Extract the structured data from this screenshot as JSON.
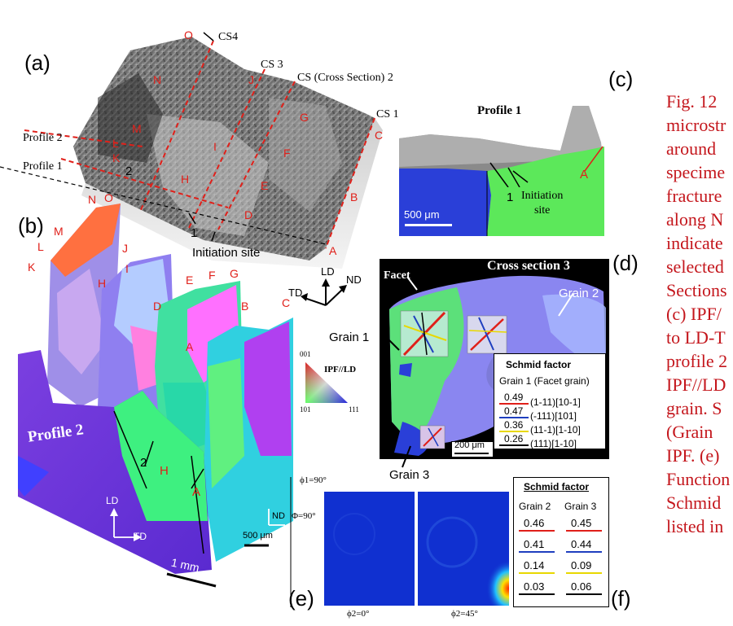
{
  "panel_letters": {
    "a": "(a)",
    "b": "(b)",
    "c": "(c)",
    "d": "(d)",
    "e": "(e)",
    "f": "(f)"
  },
  "panel_a": {
    "cs_labels": [
      "CS4",
      "CS 3",
      "CS (Cross Section) 2",
      "CS 1"
    ],
    "profile_labels": [
      "Profile 2",
      "Profile 1"
    ],
    "point_labels": [
      "O",
      "N",
      "M",
      "L",
      "K",
      "J",
      "I",
      "H",
      "G",
      "F",
      "E",
      "D",
      "C",
      "B",
      "A"
    ],
    "numbers": [
      "1",
      "2"
    ],
    "initiation_site": "Initiation site",
    "axes": {
      "ld": "LD",
      "nd": "ND",
      "td": "TD"
    }
  },
  "panel_b": {
    "point_labels": [
      "N",
      "O",
      "M",
      "L",
      "K",
      "J",
      "I",
      "H",
      "D",
      "E",
      "F",
      "G",
      "B",
      "C",
      "A"
    ],
    "profile_label": "Profile 2",
    "numbers": [
      "2"
    ],
    "bottom_labels": [
      "H",
      "A"
    ],
    "axes": {
      "ld": "LD",
      "td": "TD",
      "nd": "ND"
    },
    "scale_500": "500 μm",
    "scale_1mm": "1 mm"
  },
  "ipf_legend": {
    "title": "IPF//LD",
    "t001": "001",
    "t101": "101",
    "t111": "111"
  },
  "panel_c": {
    "title": "Profile 1",
    "initiation": "Initiation\nsite",
    "number": "1",
    "letter": "A",
    "scale": "500 μm"
  },
  "panel_d": {
    "title": "Cross section 3",
    "facet": "Facet",
    "grain1": "Grain 1",
    "grain2": "Grain 2",
    "grain3": "Grain 3",
    "scale": "200 μm",
    "table": {
      "title": "Schmid factor",
      "subtitle": "Grain 1 (Facet grain)",
      "rows": [
        {
          "value": "0.49",
          "plane": "(1-11)[10-1]",
          "color": "#e0201a"
        },
        {
          "value": "0.47",
          "plane": "(-111)[101]",
          "color": "#1f3fbf"
        },
        {
          "value": "0.36",
          "plane": "(11-1)[1-10]",
          "color": "#e8d800"
        },
        {
          "value": "0.26",
          "plane": "(111)[1-10]",
          "color": "#000000"
        }
      ]
    }
  },
  "panel_e": {
    "phi1": "ϕ1=90°",
    "Phi": "Φ=90°",
    "phi2_0": "ϕ2=0°",
    "phi2_45": "ϕ2=45°"
  },
  "panel_f": {
    "title": "Schmid factor",
    "col1": "Grain 2",
    "col2": "Grain 3",
    "rows": [
      {
        "g2": "0.46",
        "g3": "0.45",
        "color": "#e0201a"
      },
      {
        "g2": "0.41",
        "g3": "0.44",
        "color": "#1f3fbf"
      },
      {
        "g2": "0.14",
        "g3": "0.09",
        "color": "#e8d800"
      },
      {
        "g2": "0.03",
        "g3": "0.06",
        "color": "#000000"
      }
    ]
  },
  "caption_lines": [
    "Fig. 12",
    "microstr",
    "around",
    "specime",
    "fracture",
    "along  N",
    "indicate",
    "selected",
    "Sections",
    "(c) IPF/",
    "to LD-T",
    "profile  2",
    "IPF//LD",
    "grain.  S",
    "(Grain",
    "IPF. (e)",
    "Function",
    "Schmid",
    "listed in"
  ]
}
